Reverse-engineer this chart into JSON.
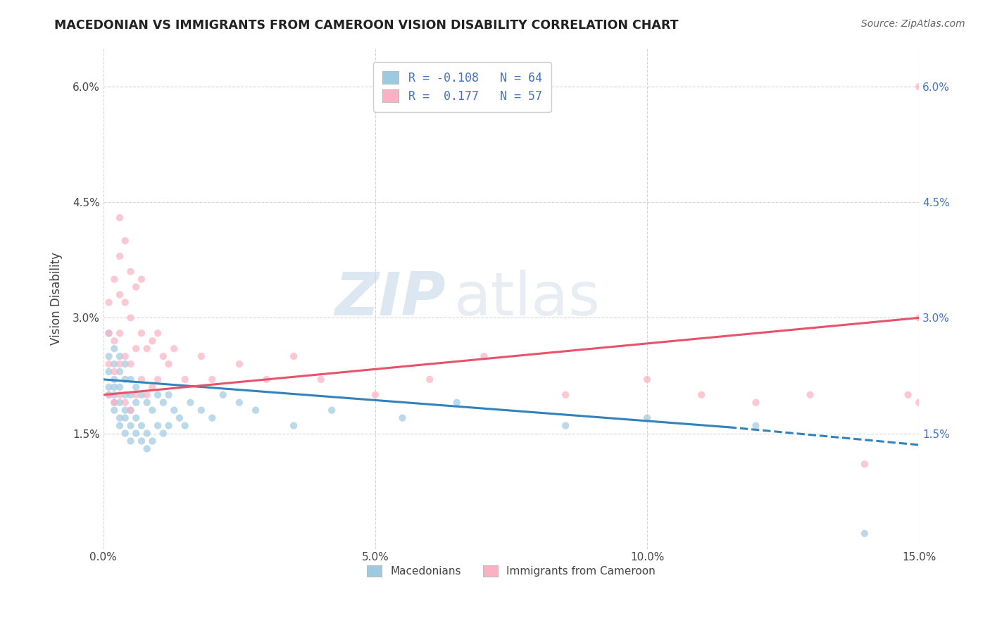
{
  "title": "MACEDONIAN VS IMMIGRANTS FROM CAMEROON VISION DISABILITY CORRELATION CHART",
  "source": "Source: ZipAtlas.com",
  "ylabel": "Vision Disability",
  "xlim": [
    0,
    0.15
  ],
  "ylim": [
    0,
    0.065
  ],
  "xticks": [
    0.0,
    0.05,
    0.1,
    0.15
  ],
  "xtick_labels": [
    "0.0%",
    "5.0%",
    "10.0%",
    "15.0%"
  ],
  "yticks": [
    0.0,
    0.015,
    0.03,
    0.045,
    0.06
  ],
  "ytick_labels_left": [
    "",
    "1.5%",
    "3.0%",
    "4.5%",
    "6.0%"
  ],
  "ytick_labels_right": [
    "",
    "1.5%",
    "3.0%",
    "4.5%",
    "6.0%"
  ],
  "blue_R": -0.108,
  "blue_N": 64,
  "pink_R": 0.177,
  "pink_N": 57,
  "blue_color": "#9ecae1",
  "pink_color": "#fcb1c3",
  "blue_line_color": "#3182bd",
  "pink_line_color": "#e8526a",
  "legend_label_blue": "Macedonians",
  "legend_label_pink": "Immigrants from Cameroon",
  "watermark_zip": "ZIP",
  "watermark_atlas": "atlas",
  "blue_scatter_x": [
    0.001,
    0.001,
    0.001,
    0.001,
    0.001,
    0.002,
    0.002,
    0.002,
    0.002,
    0.002,
    0.002,
    0.002,
    0.003,
    0.003,
    0.003,
    0.003,
    0.003,
    0.003,
    0.004,
    0.004,
    0.004,
    0.004,
    0.004,
    0.004,
    0.005,
    0.005,
    0.005,
    0.005,
    0.005,
    0.006,
    0.006,
    0.006,
    0.006,
    0.007,
    0.007,
    0.007,
    0.008,
    0.008,
    0.008,
    0.009,
    0.009,
    0.01,
    0.01,
    0.011,
    0.011,
    0.012,
    0.012,
    0.013,
    0.014,
    0.015,
    0.016,
    0.018,
    0.02,
    0.022,
    0.025,
    0.028,
    0.035,
    0.042,
    0.055,
    0.065,
    0.085,
    0.1,
    0.12,
    0.14
  ],
  "blue_scatter_y": [
    0.021,
    0.023,
    0.025,
    0.028,
    0.02,
    0.018,
    0.02,
    0.022,
    0.024,
    0.026,
    0.019,
    0.021,
    0.017,
    0.019,
    0.021,
    0.023,
    0.025,
    0.016,
    0.018,
    0.02,
    0.022,
    0.024,
    0.015,
    0.017,
    0.016,
    0.018,
    0.02,
    0.022,
    0.014,
    0.015,
    0.017,
    0.019,
    0.021,
    0.014,
    0.016,
    0.02,
    0.013,
    0.015,
    0.019,
    0.014,
    0.018,
    0.016,
    0.02,
    0.015,
    0.019,
    0.016,
    0.02,
    0.018,
    0.017,
    0.016,
    0.019,
    0.018,
    0.017,
    0.02,
    0.019,
    0.018,
    0.016,
    0.018,
    0.017,
    0.019,
    0.016,
    0.017,
    0.016,
    0.002
  ],
  "pink_scatter_x": [
    0.001,
    0.001,
    0.001,
    0.001,
    0.002,
    0.002,
    0.002,
    0.002,
    0.003,
    0.003,
    0.003,
    0.003,
    0.003,
    0.003,
    0.004,
    0.004,
    0.004,
    0.004,
    0.005,
    0.005,
    0.005,
    0.005,
    0.006,
    0.006,
    0.006,
    0.007,
    0.007,
    0.007,
    0.008,
    0.008,
    0.009,
    0.009,
    0.01,
    0.01,
    0.011,
    0.012,
    0.013,
    0.015,
    0.018,
    0.02,
    0.025,
    0.03,
    0.035,
    0.04,
    0.05,
    0.06,
    0.07,
    0.085,
    0.1,
    0.11,
    0.12,
    0.13,
    0.14,
    0.148,
    0.15,
    0.15,
    0.15
  ],
  "pink_scatter_y": [
    0.02,
    0.024,
    0.028,
    0.032,
    0.019,
    0.023,
    0.027,
    0.035,
    0.02,
    0.024,
    0.028,
    0.033,
    0.038,
    0.043,
    0.019,
    0.025,
    0.032,
    0.04,
    0.018,
    0.024,
    0.03,
    0.036,
    0.02,
    0.026,
    0.034,
    0.022,
    0.028,
    0.035,
    0.02,
    0.026,
    0.021,
    0.027,
    0.022,
    0.028,
    0.025,
    0.024,
    0.026,
    0.022,
    0.025,
    0.022,
    0.024,
    0.022,
    0.025,
    0.022,
    0.02,
    0.022,
    0.025,
    0.02,
    0.022,
    0.02,
    0.019,
    0.02,
    0.011,
    0.02,
    0.019,
    0.06,
    0.03
  ]
}
